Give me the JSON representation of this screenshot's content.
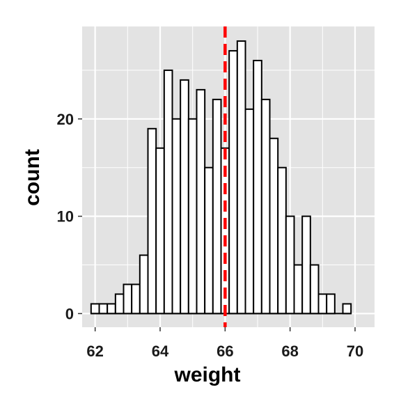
{
  "chart_data": {
    "type": "bar",
    "subtype": "histogram",
    "xlabel": "weight",
    "ylabel": "count",
    "xlim": [
      61.6,
      70.6
    ],
    "ylim": [
      -1.4,
      29.5
    ],
    "x_ticks": [
      62,
      64,
      66,
      68,
      70
    ],
    "x_tick_labels": [
      "62",
      "64",
      "66",
      "68",
      "70"
    ],
    "y_ticks": [
      0,
      10,
      20
    ],
    "y_tick_labels": [
      "0",
      "10",
      "20"
    ],
    "bin_width": 0.25,
    "first_bin_start": 61.875,
    "counts": [
      1,
      1,
      1,
      2,
      3,
      3,
      6,
      19,
      17,
      25,
      20,
      24,
      20,
      23,
      15,
      22,
      17,
      27,
      28,
      21,
      26,
      22,
      18,
      15,
      10,
      5,
      10,
      5,
      2,
      2,
      0,
      1
    ],
    "mean_line": {
      "value": 66.0,
      "color": "#ff0000",
      "style": "dashed"
    },
    "grid": true,
    "colors": {
      "panel": "#e3e3e3",
      "grid": "#ffffff",
      "bar_fill": "#ffffff",
      "bar_stroke": "#000000"
    }
  }
}
